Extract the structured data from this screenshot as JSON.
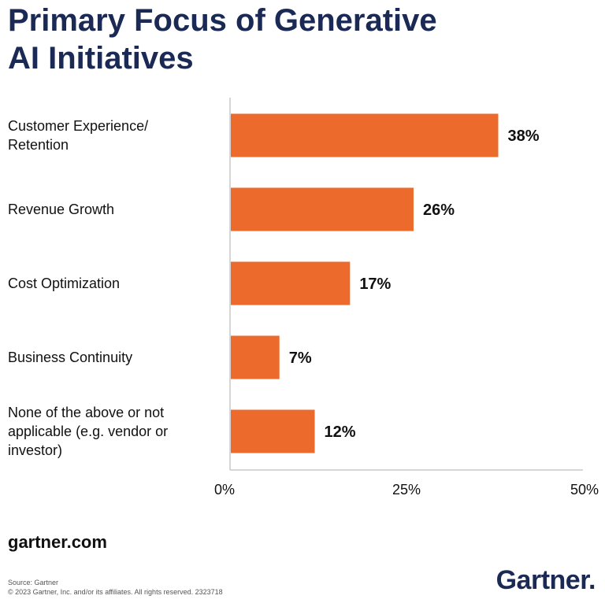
{
  "header": {
    "title_line1": "Primary Focus of Generative",
    "title_line2": "AI Initiatives"
  },
  "footer": {
    "site": "gartner.com",
    "source": "Source: Gartner",
    "copyright": "© 2023 Gartner, Inc. and/or its affiliates. All rights reserved. 2323718",
    "logo": "Gartner."
  },
  "colors": {
    "bar": "#ec6a2c",
    "title": "#1b2a55",
    "axis": "#c8c8c8",
    "text": "#111111"
  },
  "chart_data": {
    "type": "bar",
    "orientation": "horizontal",
    "title": "Primary Focus of Generative AI Initiatives",
    "xlabel": "",
    "ylabel": "",
    "xlim": [
      0,
      50
    ],
    "x_ticks": [
      0,
      25,
      50
    ],
    "x_tick_labels": [
      "0%",
      "25%",
      "50%"
    ],
    "categories": [
      [
        "Customer Experience/",
        "Retention"
      ],
      [
        "Revenue Growth"
      ],
      [
        "Cost Optimization"
      ],
      [
        "Business Continuity"
      ],
      [
        "None of the above or not",
        "applicable (e.g. vendor or",
        "investor)"
      ]
    ],
    "values": [
      38,
      26,
      17,
      7,
      12
    ],
    "value_labels": [
      "38%",
      "26%",
      "17%",
      "7%",
      "12%"
    ],
    "grid": false,
    "legend": "none"
  }
}
